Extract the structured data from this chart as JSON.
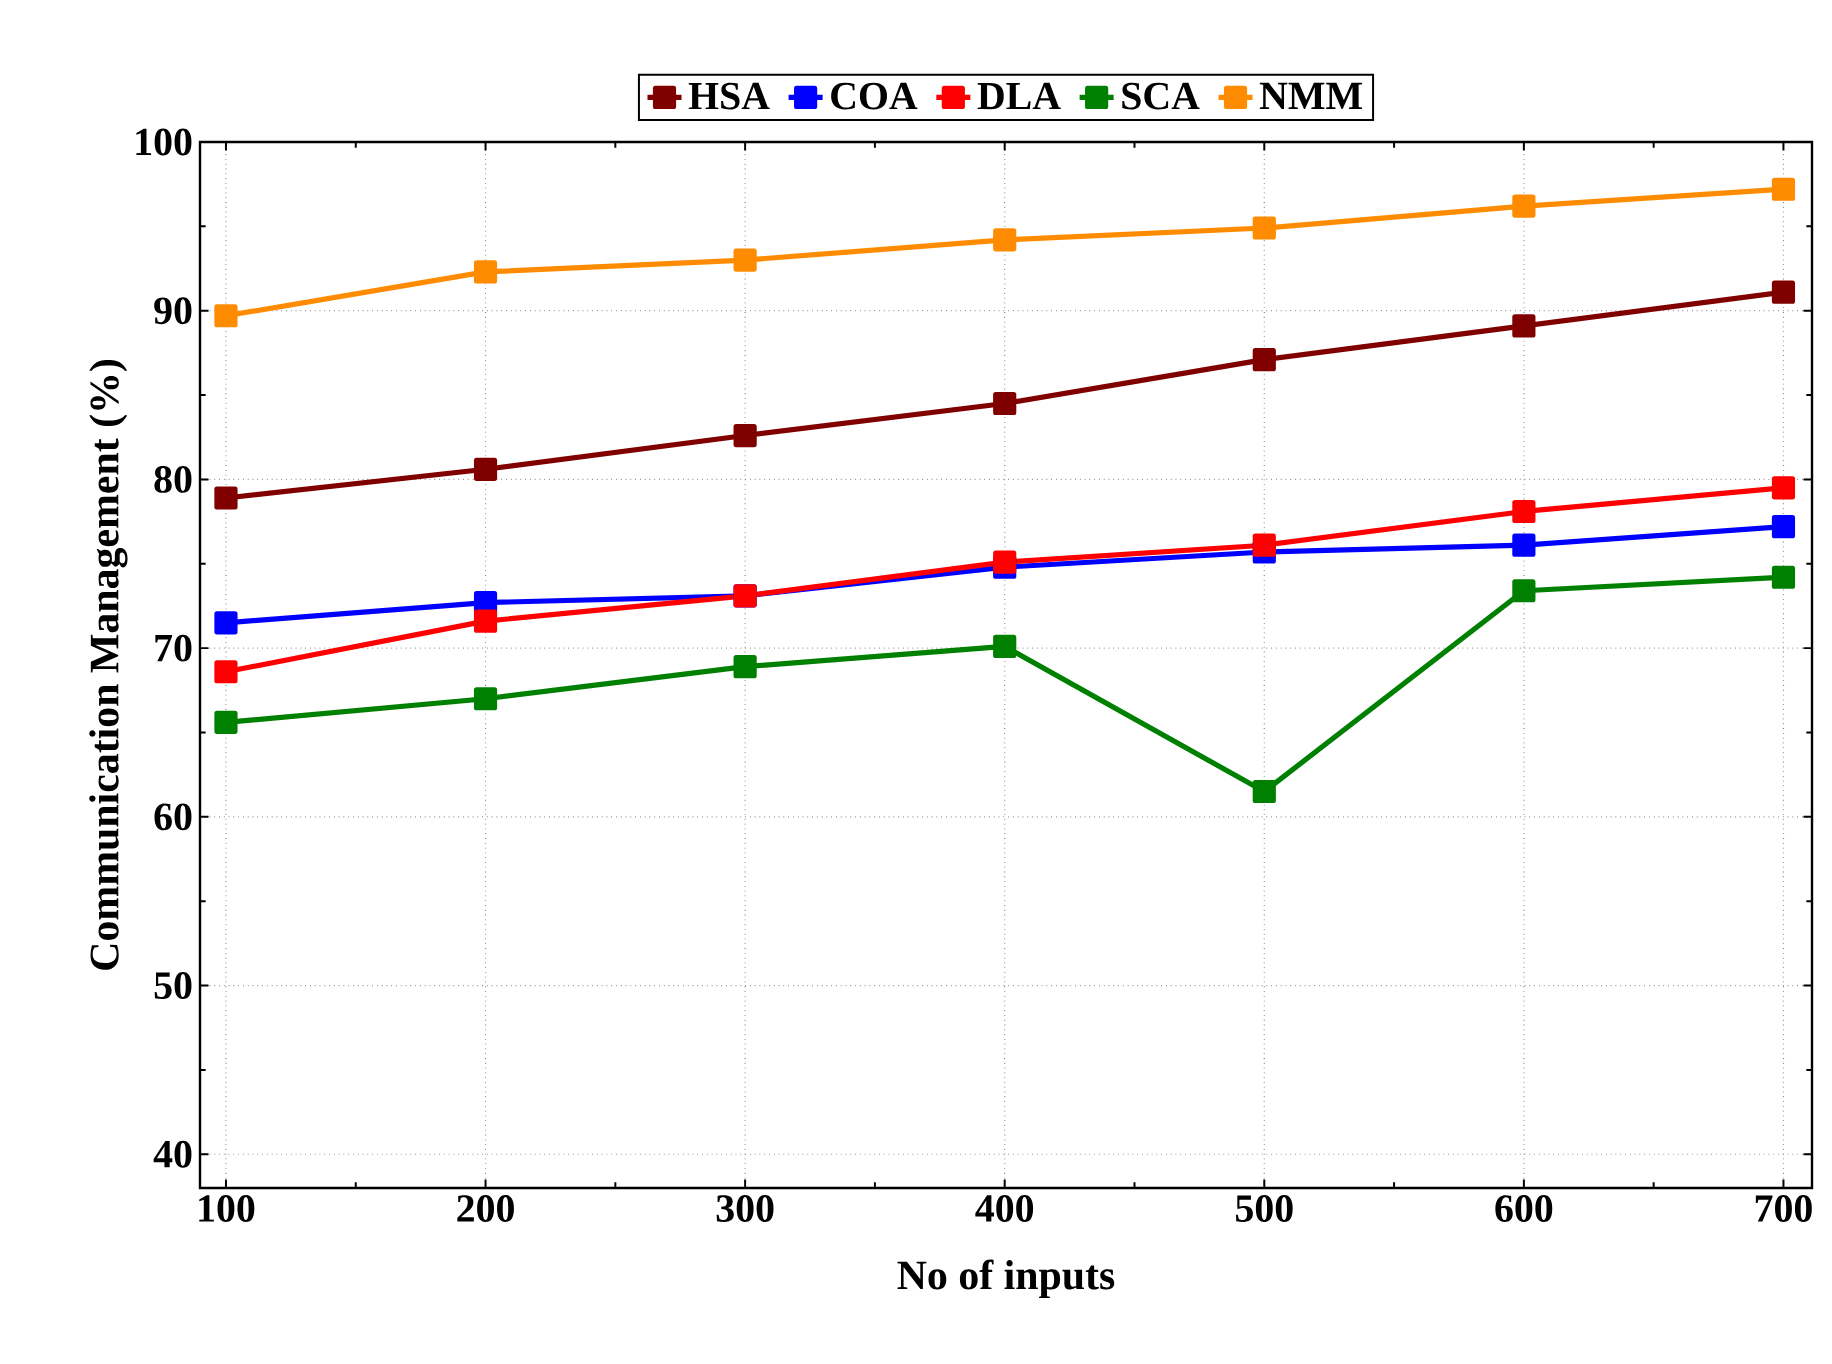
{
  "chart_data": {
    "type": "line",
    "xlabel": "No of inputs",
    "ylabel": "Communication Management (%)",
    "x": [
      100,
      200,
      300,
      400,
      500,
      600,
      700
    ],
    "series": [
      {
        "name": "HSA",
        "color": "#800000",
        "values": [
          78.9,
          80.6,
          82.6,
          84.5,
          87.1,
          89.1,
          91.1
        ]
      },
      {
        "name": "COA",
        "color": "#0000ff",
        "values": [
          71.5,
          72.7,
          73.1,
          74.8,
          75.7,
          76.1,
          77.2
        ]
      },
      {
        "name": "DLA",
        "color": "#ff0000",
        "values": [
          68.6,
          71.6,
          73.1,
          75.1,
          76.1,
          78.1,
          79.5
        ]
      },
      {
        "name": "SCA",
        "color": "#008000",
        "values": [
          65.6,
          67.0,
          68.9,
          70.1,
          61.5,
          73.4,
          74.2
        ]
      },
      {
        "name": "NMM",
        "color": "#ff8c00",
        "values": [
          89.7,
          92.3,
          93.0,
          94.2,
          94.9,
          96.2,
          97.2
        ]
      }
    ],
    "xlim": [
      90,
      711
    ],
    "ylim": [
      38,
      100
    ],
    "xticks": [
      100,
      200,
      300,
      400,
      500,
      600,
      700
    ],
    "yticks": [
      40,
      50,
      60,
      70,
      80,
      90,
      100
    ],
    "grid": true,
    "legend": "top",
    "marker": "square",
    "line_style": "solid"
  }
}
